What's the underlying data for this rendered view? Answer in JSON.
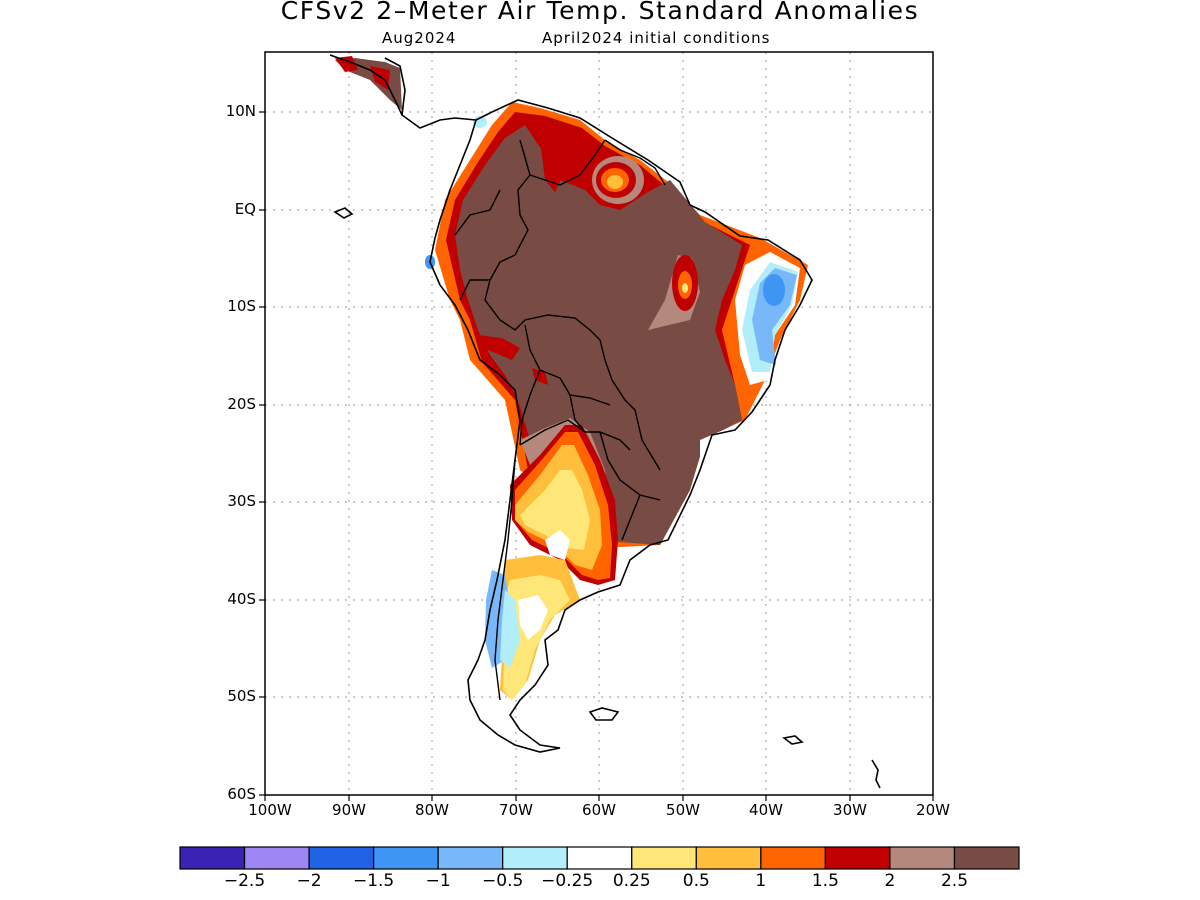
{
  "title": "CFSv2 2–Meter Air Temp. Standard Anomalies",
  "subtitle_month": "Aug2024",
  "subtitle_init": "April2024 initial conditions",
  "lat_labels": [
    "10N",
    "EQ",
    "10S",
    "20S",
    "30S",
    "40S",
    "50S",
    "60S"
  ],
  "lon_labels": [
    "100W",
    "90W",
    "80W",
    "70W",
    "60W",
    "50W",
    "40W",
    "30W",
    "20W"
  ],
  "colorbar": {
    "colors": [
      "#3a23b4",
      "#9d86f4",
      "#1f63e4",
      "#3e95f4",
      "#78b8f8",
      "#b2eefa",
      "#ffffff",
      "#ffe678",
      "#ffbe3c",
      "#ff6400",
      "#c00000",
      "#b4887c",
      "#784c44"
    ],
    "labels": [
      "−2.5",
      "−2",
      "−1.5",
      "−1",
      "−0.5",
      "−0.25",
      "0.25",
      "0.5",
      "1",
      "1.5",
      "2",
      "2.5"
    ]
  }
}
